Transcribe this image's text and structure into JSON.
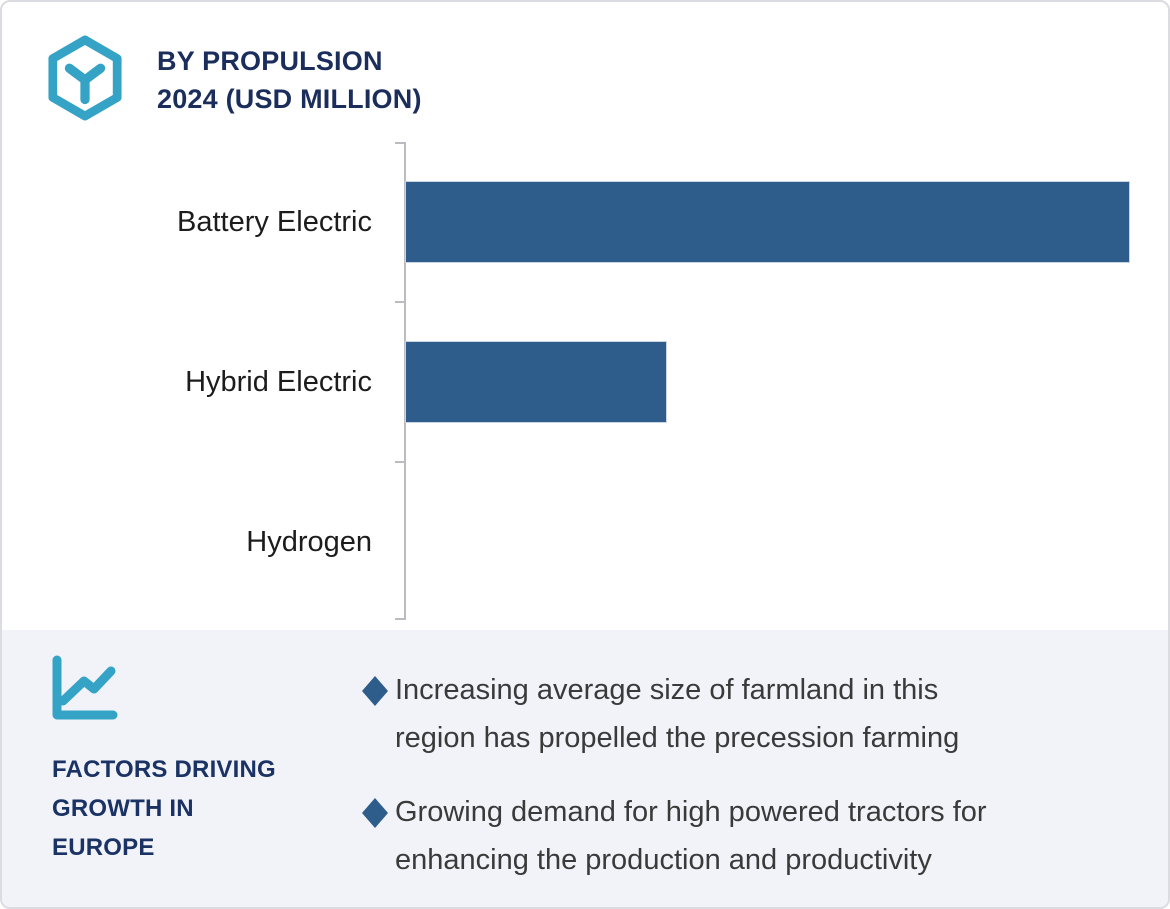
{
  "header": {
    "title": "BY PROPULSION\n2024 (USD MILLION)",
    "title_color": "#1b2d5b",
    "icon": "hexagon-cube-icon",
    "icon_color": "#35a3c6"
  },
  "chart_data": {
    "type": "bar",
    "orientation": "horizontal",
    "title": "BY PROPULSION 2024 (USD MILLION)",
    "unit": "USD Million",
    "categories": [
      "Battery Electric",
      "Hybrid Electric",
      "Hydrogen"
    ],
    "values": [
      100,
      36,
      0
    ],
    "value_note": "axis unlabeled; values are relative estimates of bar length (max bar = 100)",
    "bar_color": "#2e5d8c",
    "axis_color": "#babcc1",
    "gridlines": false,
    "legend_position": "none"
  },
  "factors_panel": {
    "background": "#f1f3f8",
    "icon": "trend-line-chart-icon",
    "icon_color": "#35a3c6",
    "heading": "FACTORS DRIVING\nGROWTH IN\nEUROPE",
    "heading_color": "#1b3264",
    "bullet_marker": "diamond",
    "bullet_color": "#2e5d8c",
    "bullets": [
      "Increasing average size of farmland in this\nregion has propelled the precession farming",
      "Growing demand for high powered tractors for\nenhancing the production and productivity"
    ]
  }
}
